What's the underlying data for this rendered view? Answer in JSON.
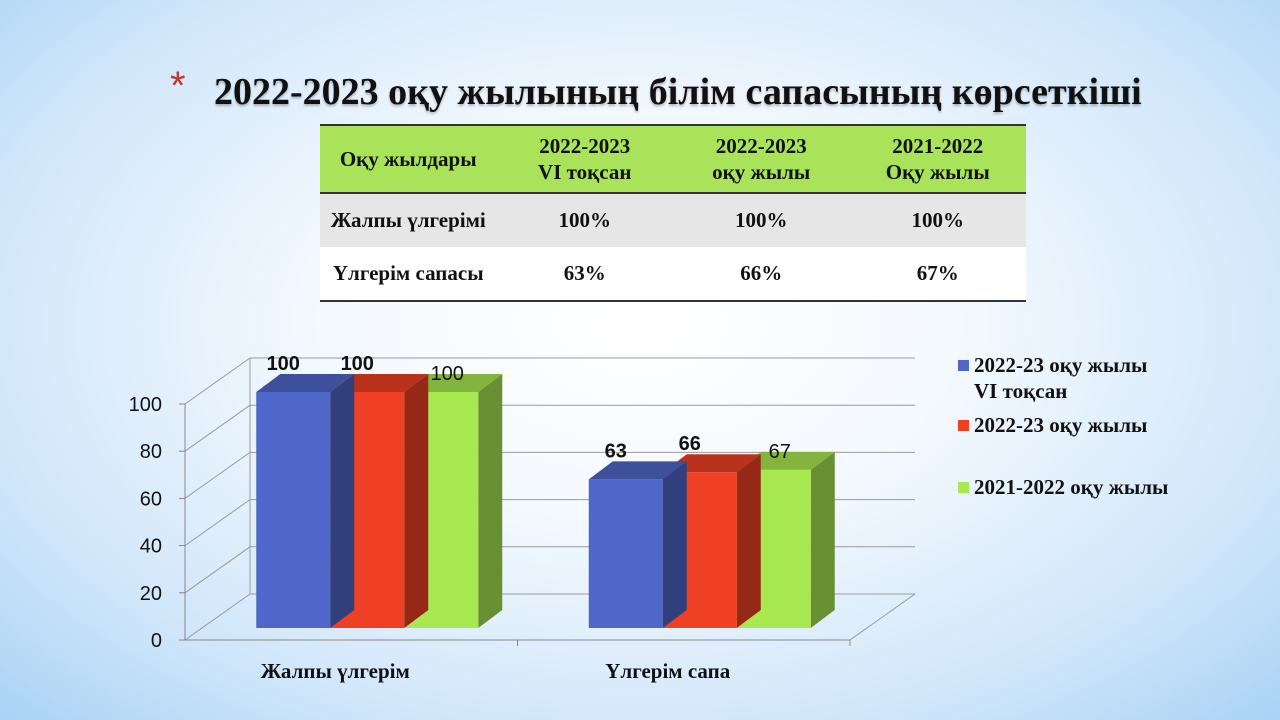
{
  "slide": {
    "bullet": "*",
    "title": "2022-2023 оқу жылының білім сапасының көрсеткіші"
  },
  "table": {
    "headers": [
      "Оқу жылдары",
      "2022-2023\nVI тоқсан",
      "2022-2023\nоқу жылы",
      "2021-2022\nОқу жылы"
    ],
    "header_lines": [
      [
        "Оқу жылдары"
      ],
      [
        "2022-2023",
        "VI тоқсан"
      ],
      [
        "2022-2023",
        "оқу жылы"
      ],
      [
        "2021-2022",
        "Оқу жылы"
      ]
    ],
    "rows": [
      [
        "Жалпы үлгерімі",
        "100%",
        "100%",
        "100%"
      ],
      [
        "Үлгерім сапасы",
        "63%",
        "66%",
        "67%"
      ]
    ],
    "header_color": "#a8e35a"
  },
  "chart_data": {
    "type": "bar",
    "style": "3d-clustered-column",
    "categories": [
      "Жалпы үлгерім",
      "Үлгерім сапа"
    ],
    "series": [
      {
        "name": "2022-23 оқу жылы VI тоқсан",
        "name_lines": [
          "2022-23 оқу жылы",
          "VI тоқсан"
        ],
        "values": [
          100,
          63
        ],
        "color": "#4f67c8"
      },
      {
        "name": "2022-23 оқу жылы",
        "name_lines": [
          "2022-23 оқу жылы"
        ],
        "values": [
          100,
          66
        ],
        "color": "#f04024"
      },
      {
        "name": "2021-2022 оқу жылы",
        "name_lines": [
          "2021-2022 оқу жылы"
        ],
        "values": [
          100,
          67
        ],
        "color": "#a8e850"
      }
    ],
    "data_labels": [
      [
        "100",
        "63"
      ],
      [
        "100",
        "66"
      ],
      [
        "100",
        "67"
      ]
    ],
    "y_ticks": [
      "0",
      "20",
      "40",
      "60",
      "80",
      "100"
    ],
    "ylim": [
      0,
      100
    ],
    "grid": true,
    "legend_position": "right"
  }
}
